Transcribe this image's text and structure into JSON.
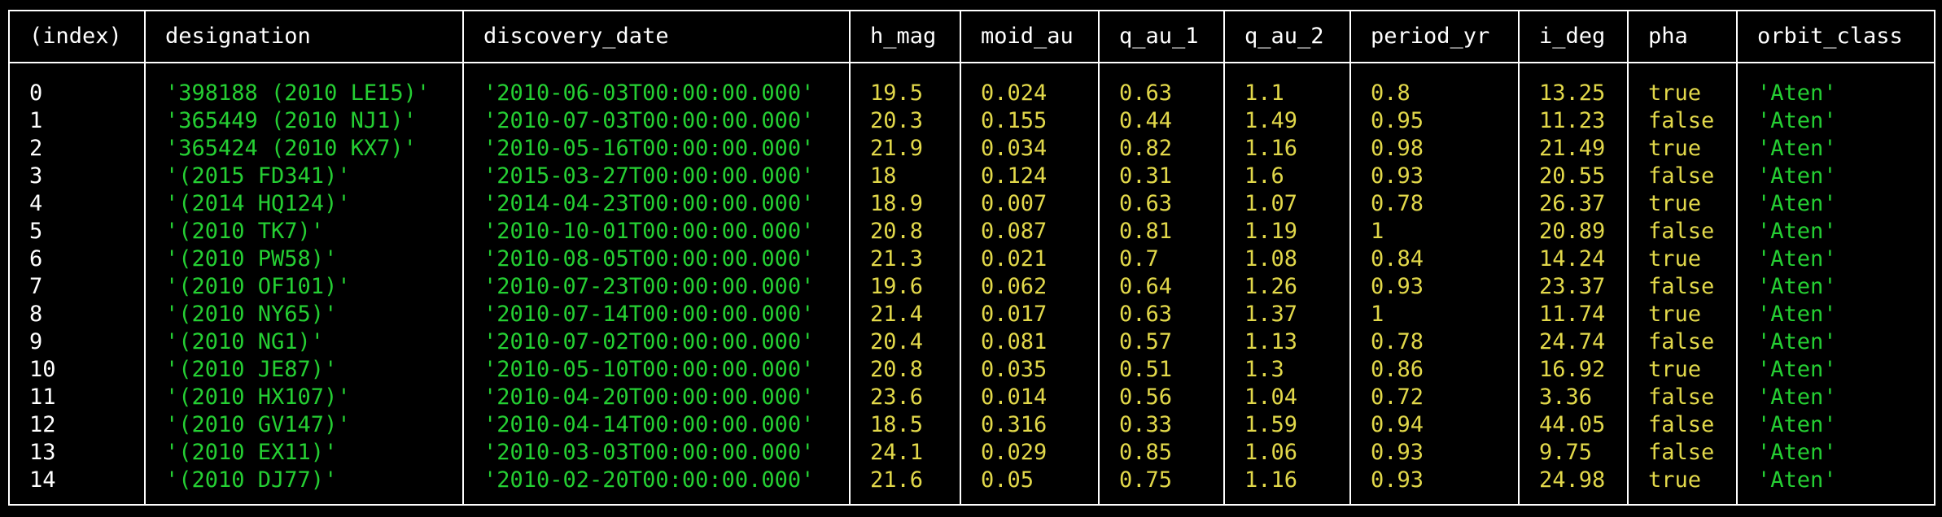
{
  "table": {
    "columns": [
      {
        "key": "index",
        "label": "(index)",
        "type": "index"
      },
      {
        "key": "designation",
        "label": "designation",
        "type": "text"
      },
      {
        "key": "discovery_date",
        "label": "discovery_date",
        "type": "text"
      },
      {
        "key": "h_mag",
        "label": "h_mag",
        "type": "num"
      },
      {
        "key": "moid_au",
        "label": "moid_au",
        "type": "num"
      },
      {
        "key": "q_au_1",
        "label": "q_au_1",
        "type": "num"
      },
      {
        "key": "q_au_2",
        "label": "q_au_2",
        "type": "num"
      },
      {
        "key": "period_yr",
        "label": "period_yr",
        "type": "num"
      },
      {
        "key": "i_deg",
        "label": "i_deg",
        "type": "num"
      },
      {
        "key": "pha",
        "label": "pha",
        "type": "num"
      },
      {
        "key": "orbit_class",
        "label": "orbit_class",
        "type": "text"
      }
    ],
    "rows": [
      [
        "0",
        "'398188 (2010 LE15)'",
        "'2010-06-03T00:00:00.000'",
        "19.5",
        "0.024",
        "0.63",
        "1.1",
        "0.8",
        "13.25",
        "true",
        "'Aten'"
      ],
      [
        "1",
        "'365449 (2010 NJ1)'",
        "'2010-07-03T00:00:00.000'",
        "20.3",
        "0.155",
        "0.44",
        "1.49",
        "0.95",
        "11.23",
        "false",
        "'Aten'"
      ],
      [
        "2",
        "'365424 (2010 KX7)'",
        "'2010-05-16T00:00:00.000'",
        "21.9",
        "0.034",
        "0.82",
        "1.16",
        "0.98",
        "21.49",
        "true",
        "'Aten'"
      ],
      [
        "3",
        "'(2015 FD341)'",
        "'2015-03-27T00:00:00.000'",
        "18",
        "0.124",
        "0.31",
        "1.6",
        "0.93",
        "20.55",
        "false",
        "'Aten'"
      ],
      [
        "4",
        "'(2014 HQ124)'",
        "'2014-04-23T00:00:00.000'",
        "18.9",
        "0.007",
        "0.63",
        "1.07",
        "0.78",
        "26.37",
        "true",
        "'Aten'"
      ],
      [
        "5",
        "'(2010 TK7)'",
        "'2010-10-01T00:00:00.000'",
        "20.8",
        "0.087",
        "0.81",
        "1.19",
        "1",
        "20.89",
        "false",
        "'Aten'"
      ],
      [
        "6",
        "'(2010 PW58)'",
        "'2010-08-05T00:00:00.000'",
        "21.3",
        "0.021",
        "0.7",
        "1.08",
        "0.84",
        "14.24",
        "true",
        "'Aten'"
      ],
      [
        "7",
        "'(2010 OF101)'",
        "'2010-07-23T00:00:00.000'",
        "19.6",
        "0.062",
        "0.64",
        "1.26",
        "0.93",
        "23.37",
        "false",
        "'Aten'"
      ],
      [
        "8",
        "'(2010 NY65)'",
        "'2010-07-14T00:00:00.000'",
        "21.4",
        "0.017",
        "0.63",
        "1.37",
        "1",
        "11.74",
        "true",
        "'Aten'"
      ],
      [
        "9",
        "'(2010 NG1)'",
        "'2010-07-02T00:00:00.000'",
        "20.4",
        "0.081",
        "0.57",
        "1.13",
        "0.78",
        "24.74",
        "false",
        "'Aten'"
      ],
      [
        "10",
        "'(2010 JE87)'",
        "'2010-05-10T00:00:00.000'",
        "20.8",
        "0.035",
        "0.51",
        "1.3",
        "0.86",
        "16.92",
        "true",
        "'Aten'"
      ],
      [
        "11",
        "'(2010 HX107)'",
        "'2010-04-20T00:00:00.000'",
        "23.6",
        "0.014",
        "0.56",
        "1.04",
        "0.72",
        "3.36",
        "false",
        "'Aten'"
      ],
      [
        "12",
        "'(2010 GV147)'",
        "'2010-04-14T00:00:00.000'",
        "18.5",
        "0.316",
        "0.33",
        "1.59",
        "0.94",
        "44.05",
        "false",
        "'Aten'"
      ],
      [
        "13",
        "'(2010 EX11)'",
        "'2010-03-03T00:00:00.000'",
        "24.1",
        "0.029",
        "0.85",
        "1.06",
        "0.93",
        "9.75",
        "false",
        "'Aten'"
      ],
      [
        "14",
        "'(2010 DJ77)'",
        "'2010-02-20T00:00:00.000'",
        "21.6",
        "0.05",
        "0.75",
        "1.16",
        "0.93",
        "24.98",
        "true",
        "'Aten'"
      ]
    ]
  },
  "colors": {
    "background": "#000000",
    "border": "#ffffff",
    "header_text": "#ffffff",
    "index_text": "#ffffff",
    "string_value": "#25cf33",
    "number_boolean_value": "#e2d84a"
  }
}
